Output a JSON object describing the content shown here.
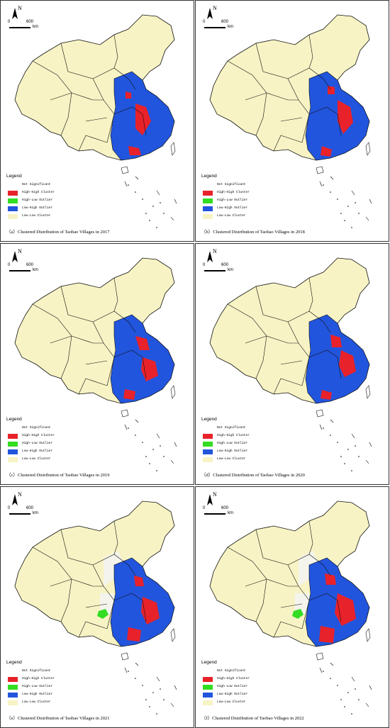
{
  "map_meta": {
    "north_label": "N",
    "scale_start": "0",
    "scale_end": "600",
    "scale_unit": "km",
    "legend_title": "Legend"
  },
  "legend": [
    {
      "label": "Not Significant",
      "color": "#ffffff"
    },
    {
      "label": "High-High Cluster",
      "color": "#e8222a"
    },
    {
      "label": "High-Low Outlier",
      "color": "#33dd22"
    },
    {
      "label": "Low-High Outlier",
      "color": "#2255dd"
    },
    {
      "label": "Low-Low Cluster",
      "color": "#f7f3c4"
    }
  ],
  "panels": [
    {
      "caption": "（a）Clustered Distribution of Taobao Villages in 2017",
      "year": "2017"
    },
    {
      "caption": "（b）Clustered Distribution of Taobao Villages in 2018",
      "year": "2018"
    },
    {
      "caption": "（c）Clustered Distribution of Taobao Villages in 2019",
      "year": "2019"
    },
    {
      "caption": "（d）Clustered Distribution of Taobao Villages in 2020",
      "year": "2020"
    },
    {
      "caption": "（e）Clustered Distribution of Taobao Villages in 2021",
      "year": "2021"
    },
    {
      "caption": "（f）Clustered Distribution of Taobao Villages in 2022",
      "year": "2022"
    }
  ],
  "colors": {
    "low_low": "#f7f3c4",
    "not_significant": "#f4f4ec",
    "high_high": "#e8222a",
    "low_high": "#2255dd",
    "high_low": "#33dd22",
    "border": "#111111"
  }
}
